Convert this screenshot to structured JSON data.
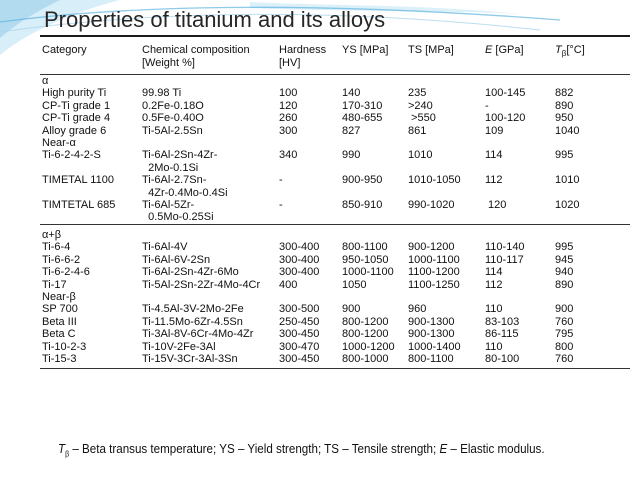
{
  "slide": {
    "title": "Properties of titanium and its alloys",
    "footnote": {
      "tb_symbol": "T",
      "tb_sub": "β",
      "tb_text": " – Beta transus temperature;  YS – Yield strength; TS – Tensile strength; ",
      "e_symbol": "E",
      "e_text": " – Elastic modulus."
    }
  },
  "table": {
    "headers": {
      "category": "Category",
      "composition_line1": "Chemical composition",
      "composition_line2": "[Weight %]",
      "hardness_line1": "Hardness",
      "hardness_line2": "[HV]",
      "ys": "YS [MPa]",
      "ts": "TS [MPa]",
      "e_symbol": "E",
      "e_unit": " [GPa]",
      "tb_symbol": "T",
      "tb_sub": "β",
      "tb_unit": "[°C]"
    },
    "rows": [
      {
        "category": "α",
        "composition": "",
        "hardness": "",
        "ys": "",
        "ts": "",
        "e": "",
        "tb": ""
      },
      {
        "category": "High purity Ti",
        "composition": "99.98 Ti",
        "hardness": "100",
        "ys": "140",
        "ts": "235",
        "e": "100-145",
        "tb": "882"
      },
      {
        "category": "CP-Ti grade 1",
        "composition": "0.2Fe-0.18O",
        "hardness": "120",
        "ys": "170-310",
        "ts": ">240",
        "e": "-",
        "tb": "890"
      },
      {
        "category": "CP-Ti grade 4",
        "composition": "0.5Fe-0.40O",
        "hardness": "260",
        "ys": "480-655",
        "ts": " >550",
        "e": "100-120",
        "tb": "950"
      },
      {
        "category": "Alloy grade 6",
        "composition": "Ti-5Al-2.5Sn",
        "hardness": "300",
        "ys": "827",
        "ts": "861",
        "e": "109",
        "tb": "1040"
      },
      {
        "category": "Near-α",
        "composition": "",
        "hardness": "",
        "ys": "",
        "ts": "",
        "e": "",
        "tb": ""
      },
      {
        "category": "Ti-6-2-4-2-S",
        "composition": "Ti-6Al-2Sn-4Zr-",
        "hardness": "340",
        "ys": "990",
        "ts": "1010",
        "e": "114",
        "tb": "995"
      },
      {
        "category": "",
        "composition": "  2Mo-0.1Si",
        "hardness": "",
        "ys": "",
        "ts": "",
        "e": "",
        "tb": ""
      },
      {
        "category": "TIMETAL 1100",
        "composition": "Ti-6Al-2.7Sn-",
        "hardness": "-",
        "ys": "900-950",
        "ts": "1010-1050",
        "e": "112",
        "tb": "1010"
      },
      {
        "category": "",
        "composition": "  4Zr-0.4Mo-0.4Si",
        "hardness": "",
        "ys": "",
        "ts": "",
        "e": "",
        "tb": ""
      },
      {
        "category": "TIMTETAL 685",
        "composition": "Ti-6Al-5Zr-",
        "hardness": "-",
        "ys": "850-910",
        "ts": "990-1020",
        "e": " 120",
        "tb": "1020"
      },
      {
        "category": "",
        "composition": "  0.5Mo-0.25Si",
        "hardness": "",
        "ys": "",
        "ts": "",
        "e": "",
        "tb": ""
      },
      {
        "category": "α+β",
        "composition": "",
        "hardness": "",
        "ys": "",
        "ts": "",
        "e": "",
        "tb": "",
        "group_start": true
      },
      {
        "category": "Ti-6-4",
        "composition": "Ti-6Al-4V",
        "hardness": "300-400",
        "ys": "800-1100",
        "ts": "900-1200",
        "e": "110-140",
        "tb": "995"
      },
      {
        "category": "Ti-6-6-2",
        "composition": "Ti-6Al-6V-2Sn",
        "hardness": "300-400",
        "ys": "950-1050",
        "ts": "1000-1100",
        "e": "110-117",
        "tb": "945"
      },
      {
        "category": "Ti-6-2-4-6",
        "composition": "Ti-6Al-2Sn-4Zr-6Mo",
        "hardness": "300-400",
        "ys": "1000-1100",
        "ts": "1100-1200",
        "e": "114",
        "tb": "940"
      },
      {
        "category": "Ti-17",
        "composition": "Ti-5Al-2Sn-2Zr-4Mo-4Cr",
        "hardness": "400",
        "ys": "1050",
        "ts": "1100-1250",
        "e": "112",
        "tb": "890"
      },
      {
        "category": "Near-β",
        "composition": "",
        "hardness": "",
        "ys": "",
        "ts": "",
        "e": "",
        "tb": ""
      },
      {
        "category": "SP 700",
        "composition": "Ti-4.5Al-3V-2Mo-2Fe",
        "hardness": "300-500",
        "ys": "900",
        "ts": "960",
        "e": "110",
        "tb": "900"
      },
      {
        "category": "Beta III",
        "composition": "Ti-11.5Mo-6Zr-4.5Sn",
        "hardness": "250-450",
        "ys": "800-1200",
        "ts": "900-1300",
        "e": "83-103",
        "tb": "760"
      },
      {
        "category": "Beta C",
        "composition": "Ti-3Al-8V-6Cr-4Mo-4Zr",
        "hardness": "300-450",
        "ys": "800-1200",
        "ts": "900-1300",
        "e": "86-115",
        "tb": "795"
      },
      {
        "category": "Ti-10-2-3",
        "composition": "Ti-10V-2Fe-3Al",
        "hardness": "300-470",
        "ys": "1000-1200",
        "ts": "1000-1400",
        "e": "110",
        "tb": "800"
      },
      {
        "category": "Ti-15-3",
        "composition": "Ti-15V-3Cr-3Al-3Sn",
        "hardness": "300-450",
        "ys": "800-1000",
        "ts": "800-1100",
        "e": "80-100",
        "tb": "760"
      }
    ]
  },
  "colors": {
    "swoosh_light": "#d8eef8",
    "swoosh_mid": "#a9d6ee",
    "swoosh_dark": "#5fb3e0"
  }
}
